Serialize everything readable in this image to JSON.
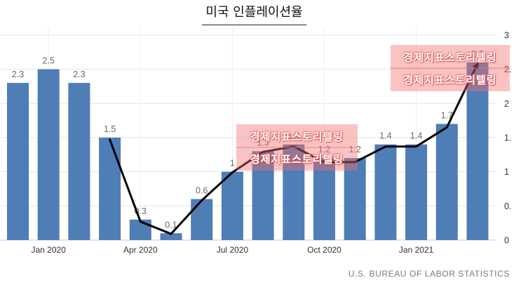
{
  "chart_data": {
    "type": "bar",
    "title": "미국 인플레이션율",
    "source": "U.S. BUREAU OF LABOR STATISTICS",
    "series": [
      {
        "type": "bar",
        "color": "#4f7db5",
        "data_labels": true,
        "values": [
          2.3,
          2.5,
          2.3,
          1.5,
          0.3,
          0.1,
          0.6,
          1,
          1.3,
          1.4,
          1.2,
          1.2,
          1.4,
          1.4,
          1.7,
          2.6
        ]
      },
      {
        "type": "line",
        "color": "#000000",
        "end_arrow": true,
        "values": [
          null,
          null,
          null,
          1.47,
          0.27,
          0.09,
          0.58,
          0.99,
          1.29,
          1.37,
          1.14,
          1.14,
          1.37,
          1.37,
          1.65,
          2.58
        ]
      }
    ],
    "x_ticks": [
      {
        "index": 1,
        "label": "Jan 2020"
      },
      {
        "index": 4,
        "label": "Apr 2020"
      },
      {
        "index": 7,
        "label": "Jul 2020"
      },
      {
        "index": 10,
        "label": "Oct 2020"
      },
      {
        "index": 13,
        "label": "Jan 2021"
      }
    ],
    "ylim": [
      0,
      3
    ],
    "y_ticks": [
      0,
      0.5,
      1,
      1.5,
      2,
      2.5,
      3
    ],
    "y_tick_labels": [
      "0",
      "0.",
      "1",
      "1.",
      "2",
      "2.",
      "3"
    ],
    "y_axis_position": "right",
    "grid": true,
    "legend": false
  },
  "watermark": {
    "text": "경제지표스토리텔링"
  }
}
